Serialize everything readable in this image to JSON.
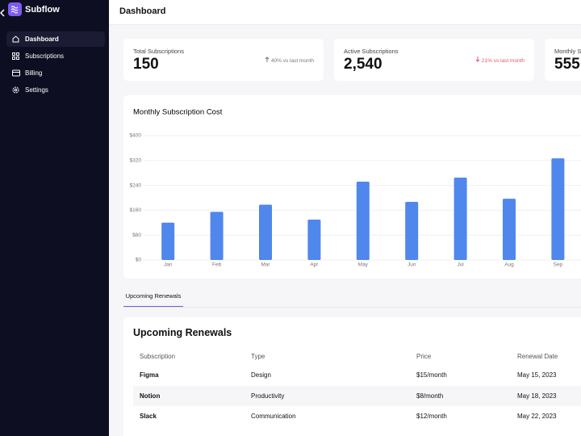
{
  "sidebar": {
    "brand": "Subflow",
    "nav": [
      "Dashboard",
      "Subscriptions",
      "Billing",
      "Settings"
    ]
  },
  "header": {
    "title": "Dashboard"
  },
  "stats": [
    {
      "label": "Total Subscriptions",
      "value": "150",
      "change": "40% vs last month"
    },
    {
      "label": "Active Subscriptions",
      "value": "2,540",
      "change": "21% vs last month"
    },
    {
      "label": "Monthly S",
      "value": "555"
    }
  ],
  "chart_data": {
    "type": "bar",
    "title": "Monthly Subscription Cost",
    "categories": [
      "Jan",
      "Feb",
      "Mar",
      "Apr",
      "May",
      "Jun",
      "Jul",
      "Aug",
      "Sep"
    ],
    "values": [
      120,
      155,
      178,
      130,
      252,
      187,
      265,
      197,
      327
    ],
    "color": "#4f87ec",
    "ylim": [
      0,
      400
    ],
    "yticks": [
      {
        "value": 0,
        "label": "$0"
      },
      {
        "value": 80,
        "label": "$80"
      },
      {
        "value": 160,
        "label": "$160"
      },
      {
        "value": 240,
        "label": "$240"
      },
      {
        "value": 320,
        "label": "$320"
      },
      {
        "value": 400,
        "label": "$400"
      }
    ],
    "grid": true
  },
  "tabs": [
    "Upcoming Renewals"
  ],
  "table": {
    "title": "Upcoming Renewals",
    "columns": [
      "Subscription",
      "Type",
      "Price",
      "Renewal Date"
    ],
    "rows": [
      [
        "Figma",
        "Design",
        "$15/month",
        "May 15, 2023"
      ],
      [
        "Notion",
        "Productivity",
        "$8/month",
        "May 18, 2023"
      ],
      [
        "Slack",
        "Communication",
        "$12/month",
        "May 22, 2023"
      ]
    ]
  }
}
